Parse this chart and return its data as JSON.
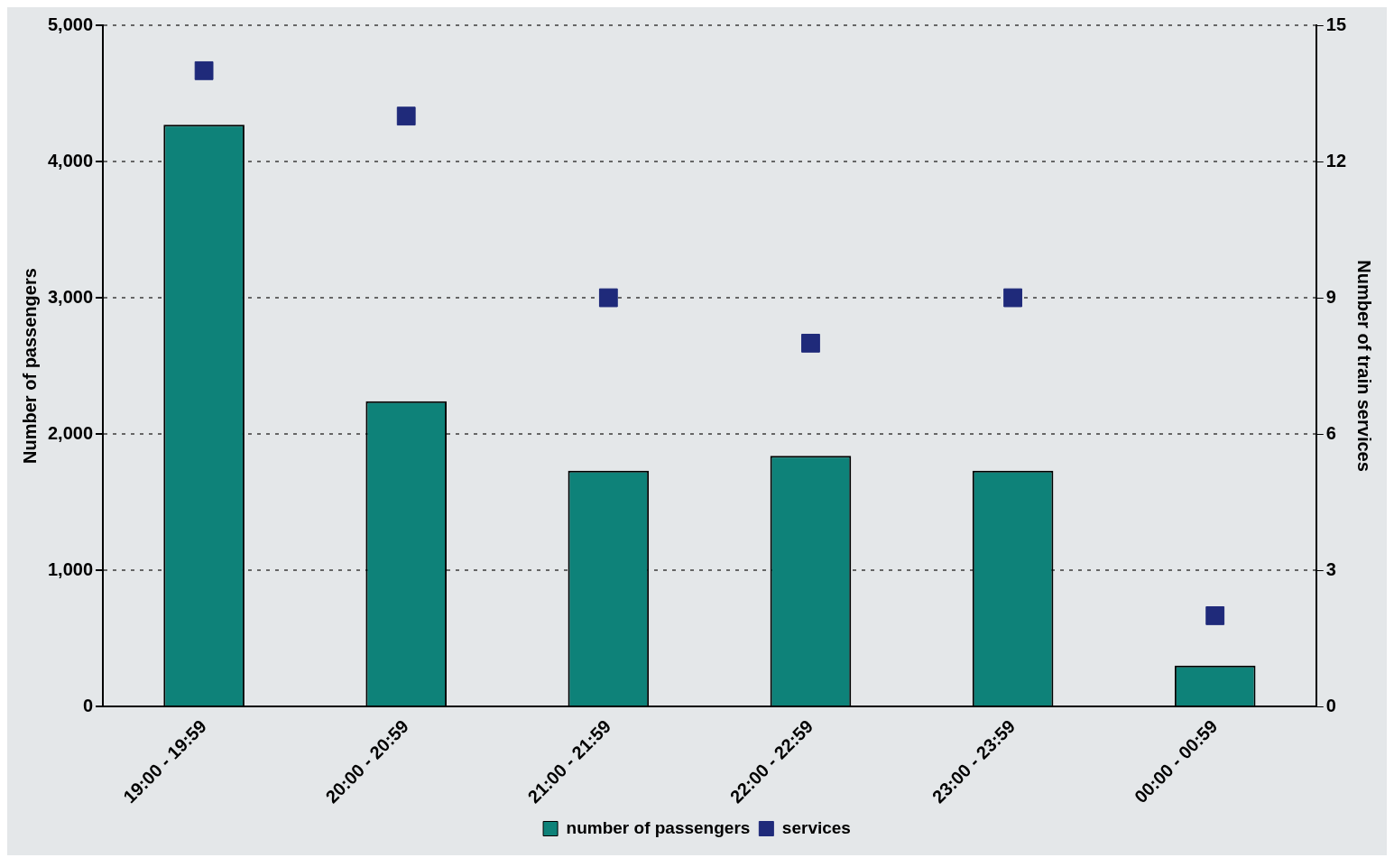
{
  "chart_data": {
    "type": "bar",
    "xlabel": null,
    "ylabel": "Number of passengers",
    "y2label": "Number of train services",
    "categories": [
      "19:00 - 19:59",
      "20:00 - 20:59",
      "21:00 - 21:59",
      "22:00 - 22:59",
      "23:00 - 23:59",
      "00:00 - 00:59"
    ],
    "series": [
      {
        "name": "number of passengers",
        "color": "#0e8279",
        "values": [
          4270,
          2240,
          1730,
          1840,
          1730,
          300
        ]
      },
      {
        "name": "services",
        "type": "scatter",
        "axis": "y2",
        "color": "#1f2a7a",
        "marker": "square",
        "values": [
          14,
          13,
          9,
          8,
          9,
          2
        ]
      }
    ],
    "ylim": [
      0,
      5000
    ],
    "yticks": [
      0,
      {
        "value": 1000,
        "label": "1,000"
      },
      {
        "value": 2000,
        "label": "2,000"
      },
      {
        "value": 3000,
        "label": "3,000"
      },
      {
        "value": 4000,
        "label": "4,000"
      },
      {
        "value": 5000,
        "label": "5,000"
      }
    ],
    "y2lim": [
      0,
      15
    ],
    "y2ticks": [
      0,
      3,
      6,
      9,
      12,
      15
    ],
    "grid": "y",
    "legend": "bottom"
  }
}
